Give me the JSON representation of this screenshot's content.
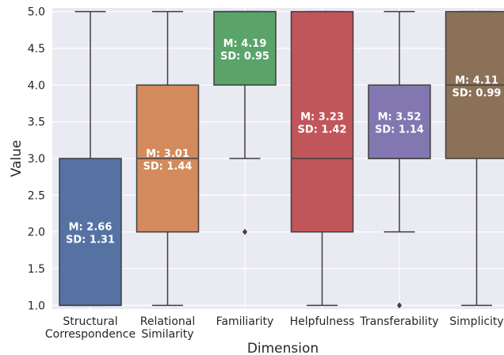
{
  "chart_data": {
    "type": "box",
    "xlabel": "Dimension",
    "ylabel": "Value",
    "ylim": [
      0.95,
      5.05
    ],
    "yticks": [
      "1.0",
      "1.5",
      "2.0",
      "2.5",
      "3.0",
      "3.5",
      "4.0",
      "4.5",
      "5.0"
    ],
    "grid": true,
    "boxes": [
      {
        "category": [
          "Structural",
          "Correspondence"
        ],
        "min": 1,
        "q1": 1,
        "median": 1,
        "q3": 3,
        "max": 5,
        "outliers": [],
        "color": "#5572a3",
        "mean_label": "M: 2.66",
        "sd_label": "SD: 1.31"
      },
      {
        "category": [
          "Relational",
          "Similarity"
        ],
        "min": 1,
        "q1": 2,
        "median": 3,
        "q3": 4,
        "max": 5,
        "outliers": [],
        "color": "#d48a5c",
        "mean_label": "M: 3.01",
        "sd_label": "SD: 1.44"
      },
      {
        "category": [
          "Familiarity"
        ],
        "min": 3,
        "q1": 4,
        "median": 5,
        "q3": 5,
        "max": 5,
        "outliers": [
          2
        ],
        "color": "#5aa46a",
        "mean_label": "M: 4.19",
        "sd_label": "SD: 0.95"
      },
      {
        "category": [
          "Helpfulness"
        ],
        "min": 1,
        "q1": 2,
        "median": 3,
        "q3": 5,
        "max": 5,
        "outliers": [],
        "color": "#c0555a",
        "mean_label": "M: 3.23",
        "sd_label": "SD: 1.42"
      },
      {
        "category": [
          "Transferability"
        ],
        "min": 2,
        "q1": 3,
        "median": 3,
        "q3": 4,
        "max": 5,
        "outliers": [
          1
        ],
        "color": "#8277b0",
        "mean_label": "M: 3.52",
        "sd_label": "SD: 1.14"
      },
      {
        "category": [
          "Simplicity"
        ],
        "min": 1,
        "q1": 3,
        "median": 4,
        "q3": 5,
        "max": 5,
        "outliers": [],
        "color": "#8c7159",
        "mean_label": "M: 4.11",
        "sd_label": "SD: 0.99"
      }
    ]
  }
}
